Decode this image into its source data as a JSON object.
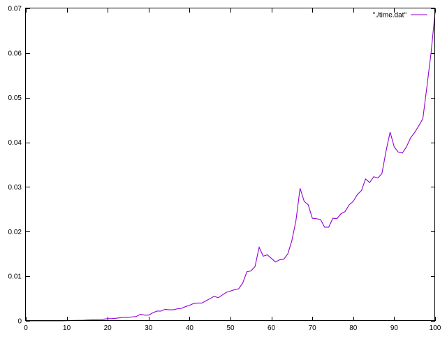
{
  "chart_data": {
    "type": "line",
    "title": "",
    "xlabel": "",
    "ylabel": "",
    "xlim": [
      0,
      100
    ],
    "ylim": [
      0,
      0.07
    ],
    "grid": false,
    "legend_placement": "top-right",
    "x_ticks": [
      0,
      10,
      20,
      30,
      40,
      50,
      60,
      70,
      80,
      90,
      100
    ],
    "x_tick_labels": [
      "0",
      "10",
      "20",
      "30",
      "40",
      "50",
      "60",
      "70",
      "80",
      "90",
      "100"
    ],
    "y_ticks": [
      0,
      0.01,
      0.02,
      0.03,
      0.04,
      0.05,
      0.06,
      0.07
    ],
    "y_tick_labels": [
      "0",
      "0.01",
      "0.02",
      "0.03",
      "0.04",
      "0.05",
      "0.06",
      "0.07"
    ],
    "series": [
      {
        "name": "\"./time.dat\"",
        "color": "#9400d3",
        "x": [
          0,
          1,
          2,
          3,
          4,
          5,
          6,
          7,
          8,
          9,
          10,
          11,
          12,
          13,
          14,
          15,
          16,
          17,
          18,
          19,
          20,
          21,
          22,
          23,
          24,
          25,
          26,
          27,
          28,
          29,
          30,
          31,
          32,
          33,
          34,
          35,
          36,
          37,
          38,
          39,
          40,
          41,
          42,
          43,
          44,
          45,
          46,
          47,
          48,
          49,
          50,
          51,
          52,
          53,
          54,
          55,
          56,
          57,
          58,
          59,
          60,
          61,
          62,
          63,
          64,
          65,
          66,
          67,
          68,
          69,
          70,
          71,
          72,
          73,
          74,
          75,
          76,
          77,
          78,
          79,
          80,
          81,
          82,
          83,
          84,
          85,
          86,
          87,
          88,
          89,
          90,
          91,
          92,
          93,
          94,
          95,
          96,
          97,
          98,
          99,
          100
        ],
        "y": [
          0,
          0,
          0,
          0,
          0,
          0,
          0,
          0,
          0,
          0,
          5e-05,
          7e-05,
          0.0001,
          0.00012,
          0.00015,
          0.0002,
          0.00025,
          0.0003,
          0.00035,
          0.0004,
          0.0005,
          0.0005,
          0.0006,
          0.0007,
          0.0008,
          0.0008,
          0.0009,
          0.001,
          0.0015,
          0.0013,
          0.0013,
          0.0018,
          0.0022,
          0.0022,
          0.0026,
          0.0025,
          0.0025,
          0.0027,
          0.0028,
          0.0032,
          0.0035,
          0.0039,
          0.004,
          0.004,
          0.0045,
          0.005,
          0.0055,
          0.0052,
          0.0058,
          0.0064,
          0.0067,
          0.007,
          0.0072,
          0.0085,
          0.011,
          0.0112,
          0.0122,
          0.0165,
          0.0145,
          0.0148,
          0.014,
          0.0132,
          0.0137,
          0.0138,
          0.015,
          0.018,
          0.0225,
          0.0297,
          0.0268,
          0.026,
          0.023,
          0.0229,
          0.0227,
          0.021,
          0.021,
          0.023,
          0.0229,
          0.024,
          0.0245,
          0.026,
          0.0268,
          0.0283,
          0.0292,
          0.0318,
          0.031,
          0.0323,
          0.032,
          0.033,
          0.038,
          0.0423,
          0.039,
          0.0378,
          0.0376,
          0.039,
          0.041,
          0.0422,
          0.0437,
          0.0453,
          0.0525,
          0.06,
          0.0692
        ]
      }
    ]
  }
}
